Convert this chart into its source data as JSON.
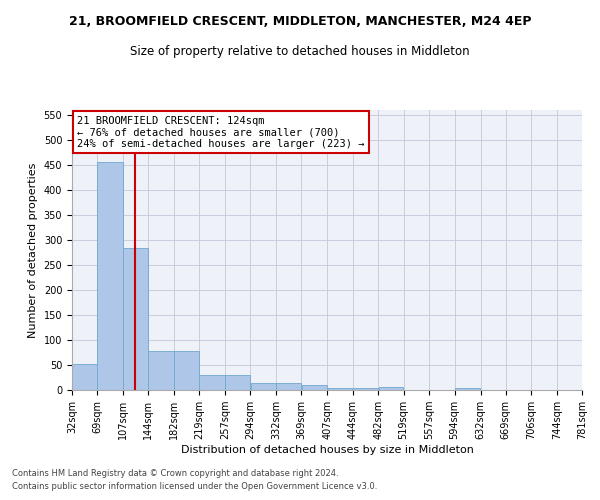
{
  "title1": "21, BROOMFIELD CRESCENT, MIDDLETON, MANCHESTER, M24 4EP",
  "title2": "Size of property relative to detached houses in Middleton",
  "xlabel": "Distribution of detached houses by size in Middleton",
  "ylabel": "Number of detached properties",
  "bar_values": [
    53,
    457,
    284,
    78,
    78,
    30,
    30,
    14,
    14,
    10,
    5,
    5,
    7,
    0,
    0,
    5,
    0,
    0,
    0,
    0
  ],
  "bin_edges": [
    32,
    69,
    107,
    144,
    182,
    219,
    257,
    294,
    332,
    369,
    407,
    444,
    482,
    519,
    557,
    594,
    632,
    669,
    706,
    744,
    781
  ],
  "x_tick_labels": [
    "32sqm",
    "69sqm",
    "107sqm",
    "144sqm",
    "182sqm",
    "219sqm",
    "257sqm",
    "294sqm",
    "332sqm",
    "369sqm",
    "407sqm",
    "444sqm",
    "482sqm",
    "519sqm",
    "557sqm",
    "594sqm",
    "632sqm",
    "669sqm",
    "706sqm",
    "744sqm",
    "781sqm"
  ],
  "bar_color": "#aec6e8",
  "bar_edge_color": "#6fa8d0",
  "vline_x": 124,
  "vline_color": "#cc0000",
  "annotation_text": "21 BROOMFIELD CRESCENT: 124sqm\n← 76% of detached houses are smaller (700)\n24% of semi-detached houses are larger (223) →",
  "annotation_box_color": "#ffffff",
  "annotation_box_edge": "#cc0000",
  "ylim": [
    0,
    560
  ],
  "yticks": [
    0,
    50,
    100,
    150,
    200,
    250,
    300,
    350,
    400,
    450,
    500,
    550
  ],
  "bg_color": "#eef2f8",
  "footnote1": "Contains HM Land Registry data © Crown copyright and database right 2024.",
  "footnote2": "Contains public sector information licensed under the Open Government Licence v3.0.",
  "title1_fontsize": 9,
  "title2_fontsize": 8.5,
  "xlabel_fontsize": 8,
  "ylabel_fontsize": 8,
  "tick_fontsize": 7,
  "annot_fontsize": 7.5,
  "footnote_fontsize": 6
}
